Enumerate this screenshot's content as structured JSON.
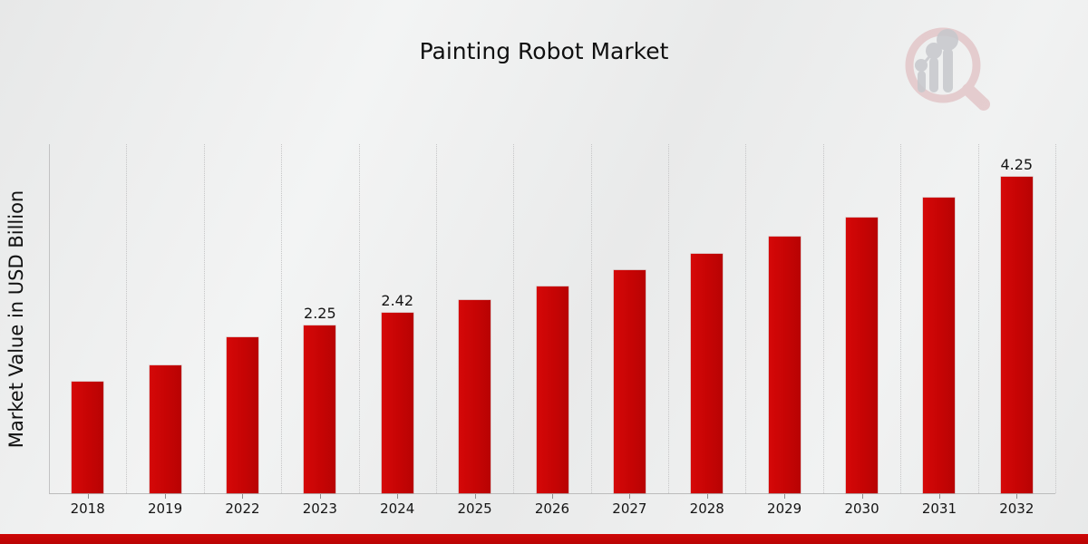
{
  "page": {
    "background_color": "#ededed",
    "accent_strip_color": "#c40606"
  },
  "chart_data": {
    "type": "bar",
    "title": "Painting Robot Market",
    "ylabel": "Market Value in USD Billion",
    "xlabel": "",
    "categories": [
      "2018",
      "2019",
      "2022",
      "2023",
      "2024",
      "2025",
      "2026",
      "2027",
      "2028",
      "2029",
      "2030",
      "2031",
      "2032"
    ],
    "values": [
      1.5,
      1.72,
      2.1,
      2.25,
      2.42,
      2.59,
      2.78,
      3.0,
      3.21,
      3.44,
      3.7,
      3.97,
      4.25
    ],
    "data_labels": [
      "",
      "",
      "",
      "2.25",
      "2.42",
      "",
      "",
      "",
      "",
      "",
      "",
      "",
      "4.25"
    ],
    "ylim": [
      0,
      4.7
    ],
    "y_tick_labels": "none",
    "grid": "vertical-dotted",
    "legend": "none",
    "bar_color": "#c60505"
  },
  "watermark": {
    "name": "market-research-magnifier-logo",
    "ring_color": "#dcafb3",
    "figure_color": "#c6c8cc"
  }
}
